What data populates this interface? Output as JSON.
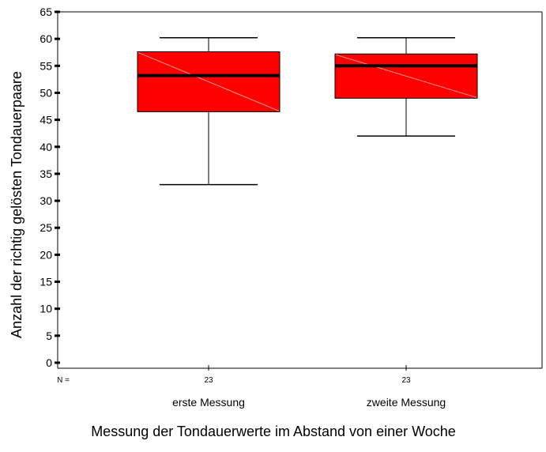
{
  "chart_data": {
    "type": "box",
    "ylabel": "Anzahl der richtig gelösten Tondauerpaare",
    "xlabel": "Messung der Tondauerwerte im Abstand von einer Woche",
    "ylim": [
      0,
      65
    ],
    "yticks": [
      0,
      5,
      10,
      15,
      20,
      25,
      30,
      35,
      40,
      45,
      50,
      55,
      60,
      65
    ],
    "n_prefix": "N =",
    "box_color": "#ff0000",
    "grid": false,
    "boxes": [
      {
        "category": "erste Messung",
        "n": "23",
        "min": 33,
        "q1": 46.5,
        "median": 53.2,
        "q3": 57.6,
        "max": 60.2
      },
      {
        "category": "zweite Messung",
        "n": "23",
        "min": 42,
        "q1": 49,
        "median": 55,
        "q3": 57.2,
        "max": 60.2
      }
    ]
  }
}
